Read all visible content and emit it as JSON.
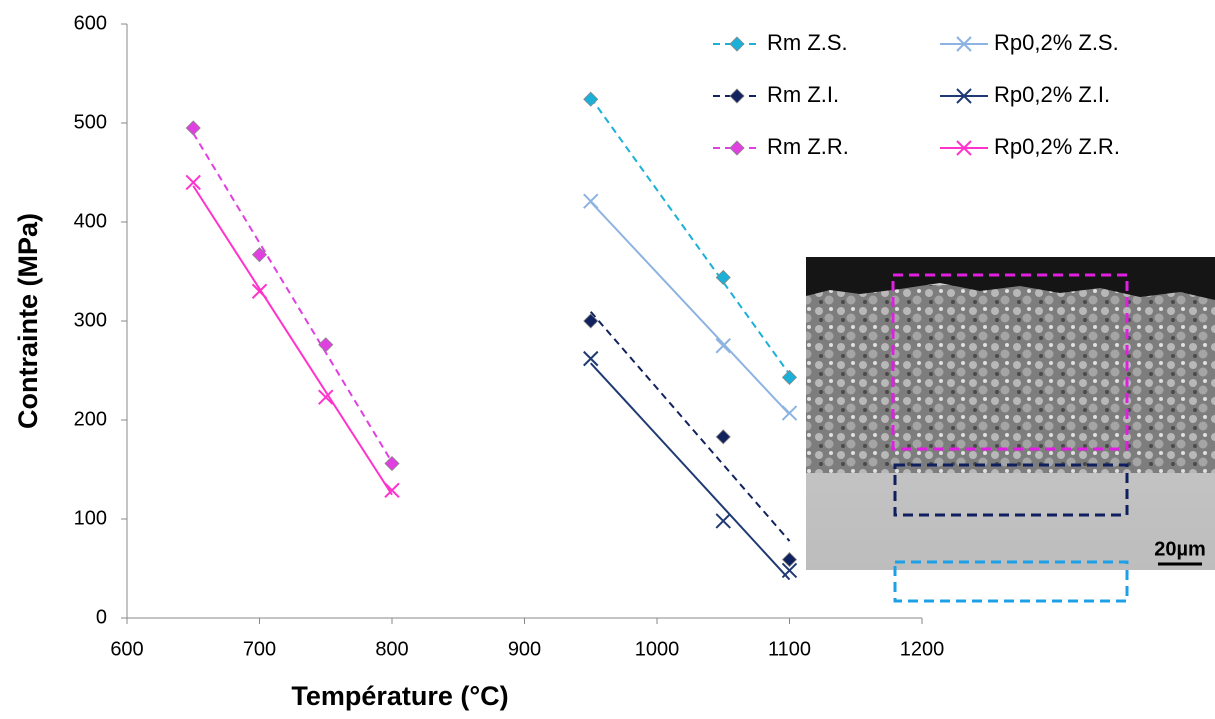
{
  "chart_data": {
    "type": "scatter",
    "xlabel": "Température (°C)",
    "ylabel": "Contrainte (MPa)",
    "xlim": [
      600,
      1200
    ],
    "xticks": [
      600,
      700,
      800,
      900,
      1000,
      1100,
      1200
    ],
    "ylim": [
      0,
      600
    ],
    "yticks": [
      0,
      100,
      200,
      300,
      400,
      500,
      600
    ],
    "grid": false,
    "legend": "top-right",
    "trendline": "linear",
    "inset_label": "20µm",
    "series": [
      {
        "name": "Rm Z.S.",
        "color": "#1ab0d8",
        "marker": "diamond",
        "dashed": true,
        "x": [
          950,
          1050,
          1100
        ],
        "values": [
          524,
          344,
          243
        ]
      },
      {
        "name": "Rp0,2% Z.S.",
        "color": "#8db3e2",
        "marker": "cross",
        "dashed": false,
        "x": [
          950,
          1050,
          1100
        ],
        "values": [
          421,
          275,
          207
        ]
      },
      {
        "name": "Rm Z.I.",
        "color": "#12225e",
        "marker": "diamond",
        "dashed": true,
        "x": [
          950,
          1050,
          1100
        ],
        "values": [
          300,
          183,
          59
        ]
      },
      {
        "name": "Rp0,2% Z.I.",
        "color": "#1f3a73",
        "marker": "cross",
        "dashed": false,
        "x": [
          950,
          1050,
          1100
        ],
        "values": [
          262,
          98,
          48
        ]
      },
      {
        "name": "Rm Z.R.",
        "color": "#e040e0",
        "marker": "diamond",
        "dashed": true,
        "x": [
          650,
          700,
          750,
          800
        ],
        "values": [
          495,
          367,
          276,
          156
        ]
      },
      {
        "name": "Rp0,2% Z.R.",
        "color": "#ff33cc",
        "marker": "cross",
        "dashed": false,
        "x": [
          650,
          700,
          750,
          800
        ],
        "values": [
          440,
          330,
          223,
          129
        ]
      }
    ]
  }
}
